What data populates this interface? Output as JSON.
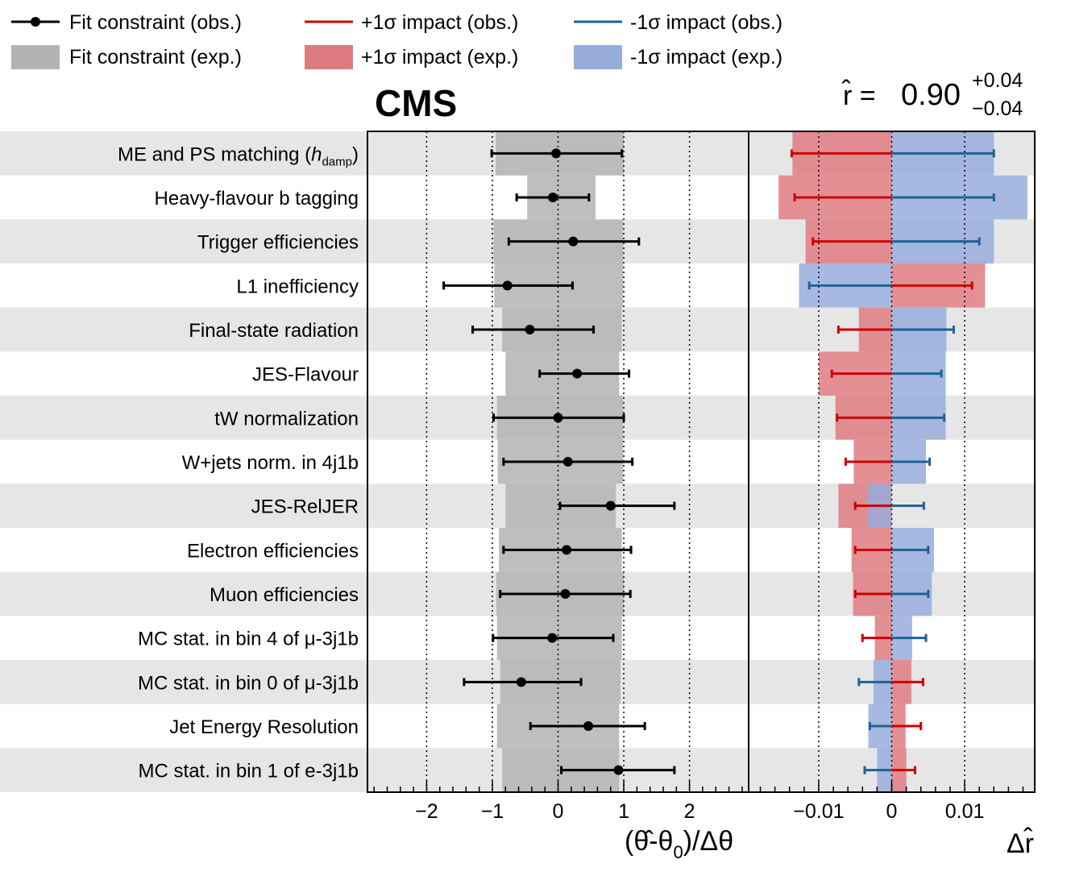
{
  "chart_data": {
    "type": "impact-plot",
    "experiment_label": "CMS",
    "result": {
      "symbol": "r̂ =",
      "value": "0.90",
      "up": "+0.04",
      "down": "−0.04"
    },
    "legend": [
      {
        "key": "constraint_obs",
        "label": "Fit constraint (obs.)"
      },
      {
        "key": "up_obs",
        "label": "+1σ impact (obs.)"
      },
      {
        "key": "down_obs",
        "label": "-1σ impact (obs.)"
      },
      {
        "key": "constraint_exp",
        "label": "Fit constraint (exp.)"
      },
      {
        "key": "up_exp",
        "label": "+1σ impact (exp.)"
      },
      {
        "key": "down_exp",
        "label": "-1σ impact (exp.)"
      }
    ],
    "colors": {
      "obs_point": "#000000",
      "constraint_exp": "#b3b3b3",
      "up_obs": "#cc0000",
      "down_obs": "#1a6496",
      "up_exp": "#de7b80",
      "down_exp": "#98acdc",
      "row_band": "#e6e6e6"
    },
    "pull_axis": {
      "label_main": "(θ̂-θ",
      "label_sub": "0",
      "label_tail": ")/Δθ",
      "range": [
        -2.9,
        2.9
      ],
      "ticks": [
        -2,
        -1,
        0,
        1,
        2
      ],
      "tick_labels": [
        "−2",
        "−1",
        "0",
        "1",
        "2"
      ],
      "gridlines": [
        -2,
        -1,
        0,
        1,
        2
      ]
    },
    "impact_axis": {
      "label": "Δr̂",
      "range": [
        -0.0196,
        0.0196
      ],
      "ticks": [
        -0.01,
        0,
        0.01
      ],
      "tick_labels": [
        "−0.01",
        "0",
        "0.01"
      ],
      "gridlines": [
        -0.01,
        0,
        0.01
      ]
    },
    "parameters": [
      {
        "name": "ME and PS matching (",
        "name_italic": "h",
        "name_sub": "damp",
        "name_tail": ")",
        "pull": -0.03,
        "err_lo": 0.98,
        "err_hi": 1.0,
        "exp_lo": 0.95,
        "exp_hi": 1.0,
        "up_obs": -0.0137,
        "down_obs": 0.014,
        "up_exp": -0.0136,
        "down_exp": 0.014
      },
      {
        "name": "Heavy-flavour b tagging",
        "pull": -0.08,
        "err_lo": 0.55,
        "err_hi": 0.55,
        "exp_lo": 0.47,
        "exp_hi": 0.57,
        "up_obs": -0.0133,
        "down_obs": 0.014,
        "up_exp": -0.0155,
        "down_exp": 0.0186
      },
      {
        "name": "Trigger efficiencies",
        "pull": 0.23,
        "err_lo": 0.98,
        "err_hi": 1.0,
        "exp_lo": 0.98,
        "exp_hi": 0.99,
        "up_obs": -0.0108,
        "down_obs": 0.012,
        "up_exp": -0.0118,
        "down_exp": 0.014
      },
      {
        "name": "L1 inefficiency",
        "pull": -0.77,
        "err_lo": 0.97,
        "err_hi": 0.99,
        "exp_lo": 0.97,
        "exp_hi": 0.99,
        "up_obs": 0.011,
        "down_obs": -0.0113,
        "up_exp": 0.0128,
        "down_exp": -0.0127
      },
      {
        "name": "Final-state radiation",
        "pull": -0.43,
        "err_lo": 0.87,
        "err_hi": 0.97,
        "exp_lo": 0.85,
        "exp_hi": 0.97,
        "up_obs": -0.0073,
        "down_obs": 0.0085,
        "up_exp": -0.0045,
        "down_exp": 0.0075
      },
      {
        "name": "JES-Flavour",
        "pull": 0.29,
        "err_lo": 0.57,
        "err_hi": 0.79,
        "exp_lo": 0.8,
        "exp_hi": 0.93,
        "up_obs": -0.0082,
        "down_obs": 0.0068,
        "up_exp": -0.01,
        "down_exp": 0.0074
      },
      {
        "name": "tW normalization",
        "pull": 0.0,
        "err_lo": 0.98,
        "err_hi": 1.0,
        "exp_lo": 0.93,
        "exp_hi": 0.99,
        "up_obs": -0.0075,
        "down_obs": 0.0072,
        "up_exp": -0.0077,
        "down_exp": 0.0074
      },
      {
        "name": "W+jets norm. in 4j1b",
        "pull": 0.15,
        "err_lo": 0.98,
        "err_hi": 0.98,
        "exp_lo": 0.92,
        "exp_hi": 0.99,
        "up_obs": -0.0063,
        "down_obs": 0.0052,
        "up_exp": -0.0052,
        "down_exp": 0.0047
      },
      {
        "name": "JES-RelJER",
        "pull": 0.8,
        "err_lo": 0.77,
        "err_hi": 0.97,
        "exp_lo": 0.8,
        "exp_hi": 0.88,
        "up_obs": -0.005,
        "down_obs": 0.0044,
        "up_exp": -0.0073,
        "down_exp": -0.0033
      },
      {
        "name": "Electron efficiencies",
        "pull": 0.13,
        "err_lo": 0.96,
        "err_hi": 0.98,
        "exp_lo": 0.9,
        "exp_hi": 0.97,
        "up_obs": -0.005,
        "down_obs": 0.005,
        "up_exp": -0.0055,
        "down_exp": 0.0058
      },
      {
        "name": "Muon efficiencies",
        "pull": 0.11,
        "err_lo": 0.99,
        "err_hi": 0.99,
        "exp_lo": 0.94,
        "exp_hi": 1.0,
        "up_obs": -0.005,
        "down_obs": 0.005,
        "up_exp": -0.0053,
        "down_exp": 0.0055
      },
      {
        "name": "MC stat. in bin 4 of μ-3j1b",
        "pull": -0.09,
        "err_lo": 0.9,
        "err_hi": 0.93,
        "exp_lo": 0.93,
        "exp_hi": 0.97,
        "up_obs": -0.004,
        "down_obs": 0.0047,
        "up_exp": -0.0023,
        "down_exp": 0.0028
      },
      {
        "name": "MC stat. in bin 0 of μ-3j1b",
        "pull": -0.56,
        "err_lo": 0.87,
        "err_hi": 0.91,
        "exp_lo": 0.88,
        "exp_hi": 0.95,
        "up_obs": 0.0043,
        "down_obs": -0.0045,
        "up_exp": 0.0027,
        "down_exp": -0.0025
      },
      {
        "name": "Jet Energy Resolution",
        "pull": 0.46,
        "err_lo": 0.88,
        "err_hi": 0.86,
        "exp_lo": 0.93,
        "exp_hi": 0.93,
        "up_obs": 0.004,
        "down_obs": -0.003,
        "up_exp": 0.0019,
        "down_exp": -0.0032
      },
      {
        "name": "MC stat. in bin 1 of e-3j1b",
        "pull": 0.92,
        "err_lo": 0.87,
        "err_hi": 0.85,
        "exp_lo": 0.85,
        "exp_hi": 0.93,
        "up_obs": 0.0032,
        "down_obs": -0.0037,
        "up_exp": 0.002,
        "down_exp": -0.002
      }
    ]
  }
}
